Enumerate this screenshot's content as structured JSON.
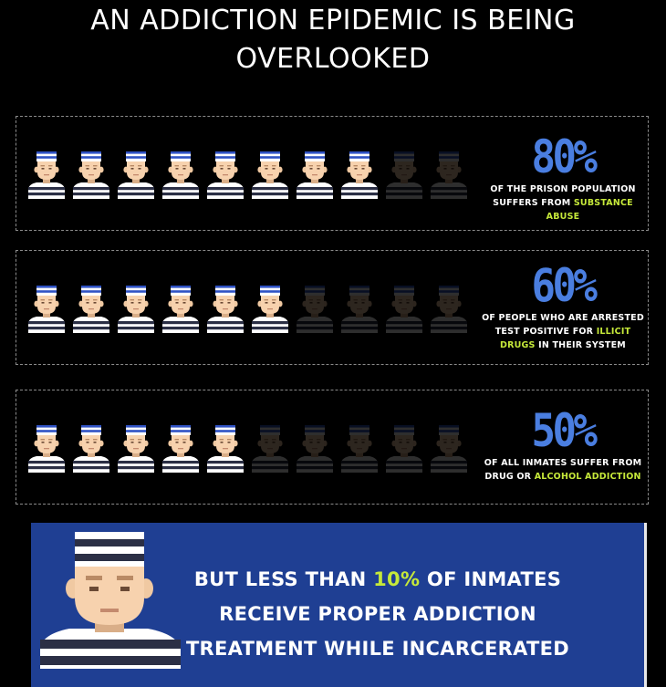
{
  "title_line1": "AN ADDICTION EPIDEMIC IS BEING",
  "title_line2": "OVERLOOKED",
  "figure_icon": "prisoner-icon",
  "colors": {
    "background": "#000000",
    "accent_blue": "#4a7ee0",
    "highlight_green": "#c6e93a",
    "banner_blue": "#1f3f93"
  },
  "stats": [
    {
      "percent": "80%",
      "highlighted_figures": 8,
      "total_figures": 10,
      "desc_before": "OF THE PRISON POPULATION SUFFERS FROM ",
      "desc_highlight": "SUBSTANCE ABUSE",
      "desc_after": ""
    },
    {
      "percent": "60%",
      "highlighted_figures": 6,
      "total_figures": 10,
      "desc_before": "OF PEOPLE WHO ARE ARRESTED TEST POSITIVE FOR ",
      "desc_highlight": "ILLICIT DRUGS",
      "desc_after": " IN THEIR SYSTEM"
    },
    {
      "percent": "50%",
      "highlighted_figures": 5,
      "total_figures": 10,
      "desc_before": "OF ALL INMATES SUFFER FROM DRUG OR ",
      "desc_highlight": "ALCOHOL ADDICTION",
      "desc_after": ""
    }
  ],
  "banner": {
    "text_before": "BUT LESS THAN ",
    "text_highlight": "10%",
    "text_after": " OF INMATES RECEIVE PROPER ADDICTION TREATMENT WHILE INCARCERATED"
  }
}
